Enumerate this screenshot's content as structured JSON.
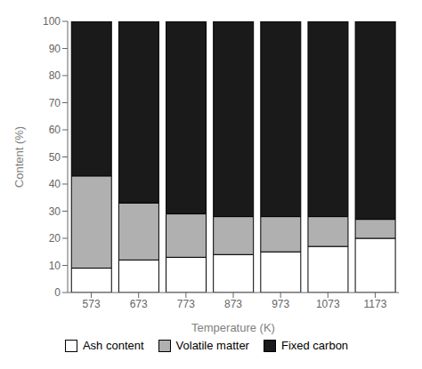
{
  "chart_data": {
    "type": "bar",
    "stacked": true,
    "categories": [
      "573",
      "673",
      "773",
      "873",
      "973",
      "1073",
      "1173"
    ],
    "series": [
      {
        "name": "Ash content",
        "color": "#ffffff",
        "values": [
          9,
          12,
          13,
          14,
          15,
          17,
          20
        ]
      },
      {
        "name": "Volatile matter",
        "color": "#b0b0b0",
        "values": [
          34,
          21,
          16,
          14,
          13,
          11,
          7
        ]
      },
      {
        "name": "Fixed carbon",
        "color": "#1a1a1a",
        "values": [
          57,
          67,
          71,
          72,
          72,
          72,
          73
        ]
      }
    ],
    "xlabel": "Temperature (K)",
    "ylabel": "Content (%)",
    "ylim": [
      0,
      100
    ],
    "yticks": [
      0,
      10,
      20,
      30,
      40,
      50,
      60,
      70,
      80,
      90,
      100
    ],
    "grid": false,
    "legend": "bottom"
  }
}
